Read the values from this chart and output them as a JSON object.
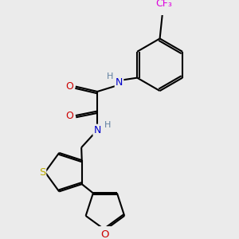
{
  "bg_color": "#ebebeb",
  "bond_color": "#000000",
  "atom_colors": {
    "N": "#0000cc",
    "O": "#cc0000",
    "S": "#bbaa00",
    "F": "#dd00dd",
    "H": "#6080a0",
    "C": "#000000"
  },
  "lw": 1.5,
  "dbo": 0.03
}
